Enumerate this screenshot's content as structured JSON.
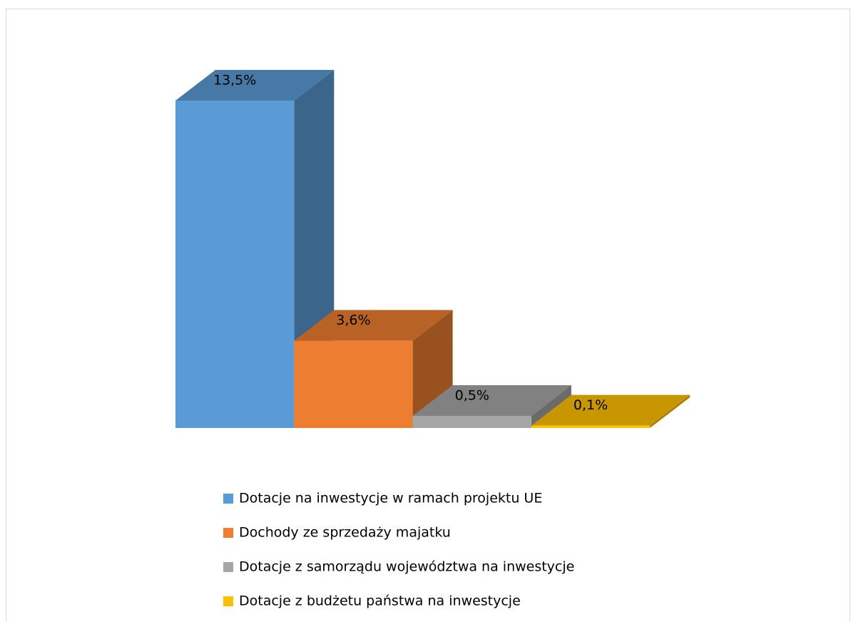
{
  "chart_data": {
    "type": "bar3d",
    "series": [
      {
        "name": "Dotacje na inwestycje w ramach projektu UE",
        "color": "#5b9bd5",
        "values": [
          13.5
        ],
        "value_labels": [
          "13,5%"
        ]
      },
      {
        "name": "Dochody ze sprzedaży majatku",
        "color": "#ed7d31",
        "values": [
          3.6
        ],
        "value_labels": [
          "3,6%"
        ]
      },
      {
        "name": "Dotacje z samorządu województwa na inwestycje",
        "color": "#a5a5a5",
        "values": [
          0.5
        ],
        "value_labels": [
          "0,5%"
        ]
      },
      {
        "name": "Dotacje z budżetu państwa na inwestycje",
        "color": "#ffc000",
        "values": [
          0.1
        ],
        "value_labels": [
          "0,1%"
        ]
      }
    ],
    "legend": "bottom"
  }
}
